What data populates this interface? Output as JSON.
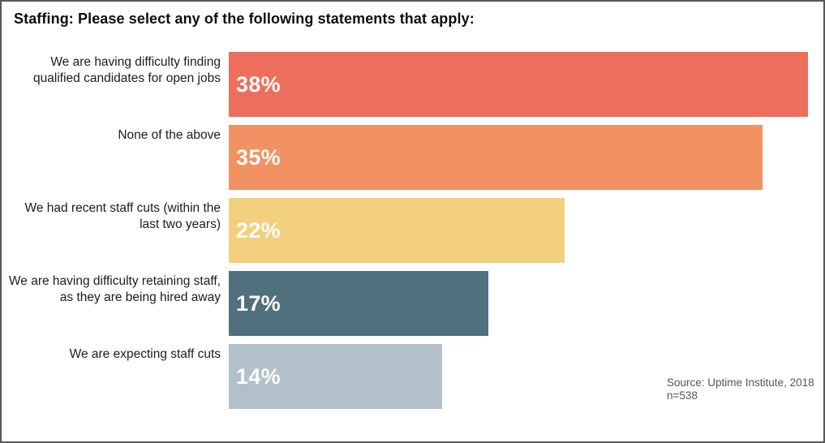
{
  "header": {
    "title": "Staffing: Please select any of the following statements that apply:"
  },
  "chart_data": {
    "type": "bar",
    "orientation": "horizontal",
    "title": "Staffing: Please select any of the following statements that apply:",
    "categories": [
      "We are having difficulty finding\nqualified candidates for open jobs",
      "None of the above",
      "We had recent staff cuts (within the\nlast two years)",
      "We are having difficulty retaining staff,\nas they are being hired away",
      "We are expecting staff cuts"
    ],
    "values": [
      38,
      35,
      22,
      17,
      14
    ],
    "value_labels": [
      "38%",
      "35%",
      "22%",
      "17%",
      "14%"
    ],
    "bar_colors": [
      "#ED6E5C",
      "#F29161",
      "#F2D07E",
      "#50707E",
      "#B2C0CA"
    ],
    "value_unit": "%",
    "xlim": [
      0,
      40
    ],
    "grid": false,
    "legend": false
  },
  "source": {
    "line1": "Source: Uptime Institute, 2018",
    "line2": "n=538"
  }
}
